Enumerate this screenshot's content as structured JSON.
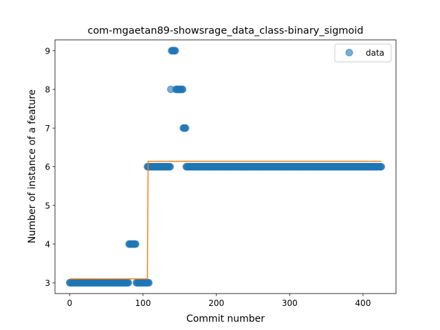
{
  "chart_data": {
    "type": "scatter",
    "title": "com-mgaetan89-showsrage_data_class-binary_sigmoid",
    "xlabel": "Commit number",
    "ylabel": "Number of instance of a feature",
    "xlim": [
      -20,
      445
    ],
    "ylim": [
      2.72,
      9.28
    ],
    "xticks": [
      0,
      100,
      200,
      300,
      400
    ],
    "yticks": [
      3,
      4,
      5,
      6,
      7,
      8,
      9
    ],
    "legend": {
      "position": "top-right",
      "entries": [
        "data"
      ]
    },
    "grid": false,
    "colors": {
      "data": "#1f77b4",
      "fit": "#ff7f0e"
    },
    "series": [
      {
        "name": "data",
        "kind": "scatter",
        "segments": [
          {
            "x_start": 0,
            "x_end": 80,
            "y": 3
          },
          {
            "x_start": 81,
            "x_end": 90,
            "y": 4
          },
          {
            "x_start": 91,
            "x_end": 108,
            "y": 3
          },
          {
            "x_start": 106,
            "x_end": 137,
            "y": 6
          },
          {
            "x_start": 138,
            "x_end": 138,
            "y": 8
          },
          {
            "x_start": 139,
            "x_end": 144,
            "y": 9
          },
          {
            "x_start": 145,
            "x_end": 154,
            "y": 8
          },
          {
            "x_start": 155,
            "x_end": 158,
            "y": 7
          },
          {
            "x_start": 159,
            "x_end": 425,
            "y": 6
          }
        ]
      },
      {
        "kind": "line",
        "points": [
          [
            0,
            3.1
          ],
          [
            106,
            3.1
          ],
          [
            107,
            6.14
          ],
          [
            425,
            6.14
          ]
        ]
      }
    ]
  }
}
